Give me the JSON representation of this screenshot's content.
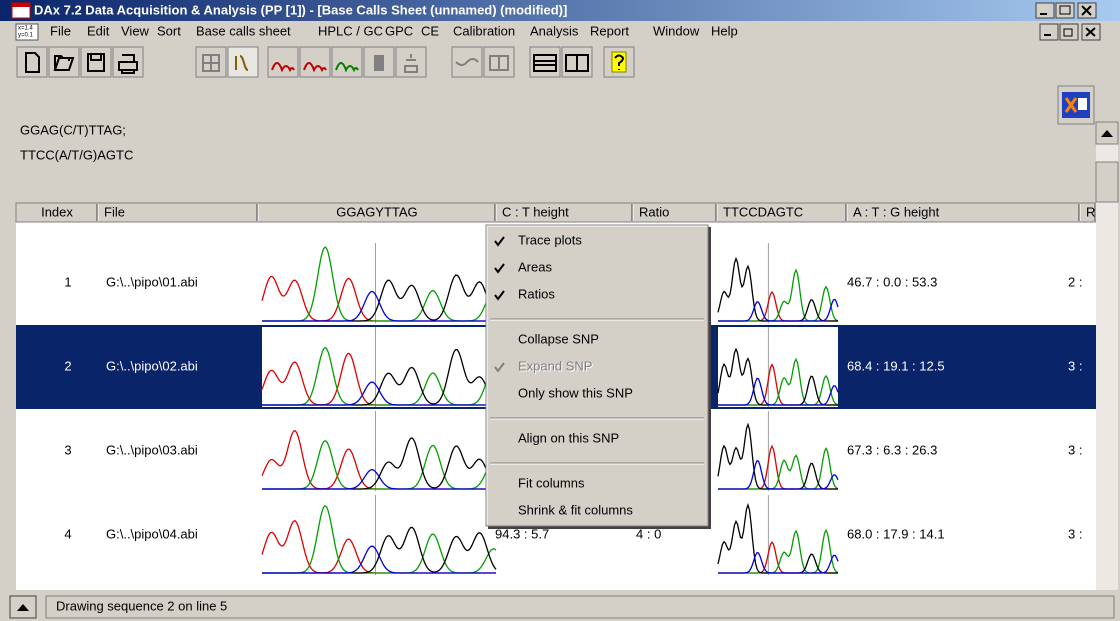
{
  "window": {
    "title": "DAx 7.2 Data Acquisition & Analysis (PP [1]) - [Base Calls Sheet (unnamed) (modified)]"
  },
  "menu": [
    "File",
    "Edit",
    "View",
    "Sort",
    "Base calls sheet",
    "HPLC / GC",
    "GPC",
    "CE",
    "Calibration",
    "Analysis",
    "Report",
    "Window",
    "Help"
  ],
  "sequences": [
    "GGAG(C/T)TTAG;",
    "TTCC(A/T/G)AGTC"
  ],
  "table": {
    "columns": [
      "Index",
      "File",
      "GGAGYTTAG",
      "C : T height",
      "Ratio",
      "TTCCDAGTC",
      "A : T : G height",
      "R"
    ],
    "rows": [
      {
        "index": 1,
        "file": "G:\\..\\pipo\\01.abi",
        "atg_height": "46.7 : 0.0 : 53.3",
        "r": "2 :"
      },
      {
        "index": 2,
        "file": "G:\\..\\pipo\\02.abi",
        "atg_height": "68.4 : 19.1 : 12.5",
        "r": "3 :",
        "selected": true
      },
      {
        "index": 3,
        "file": "G:\\..\\pipo\\03.abi",
        "atg_height": "67.3 : 6.3 : 26.3",
        "r": "3 :"
      },
      {
        "index": 4,
        "file": "G:\\..\\pipo\\04.abi",
        "ct_height": "94.3 : 5.7",
        "ratio": "4 : 0",
        "atg_height": "68.0 : 17.9 : 14.1",
        "r": "3 :"
      }
    ]
  },
  "context_menu": [
    [
      {
        "label": "Trace plots",
        "checked": true
      },
      {
        "label": "Areas",
        "checked": true
      },
      {
        "label": "Ratios",
        "checked": true
      }
    ],
    [
      {
        "label": "Collapse SNP"
      },
      {
        "label": "Expand SNP",
        "checked": true,
        "disabled": true
      },
      {
        "label": "Only show this SNP"
      }
    ],
    [
      {
        "label": "Align on this SNP"
      }
    ],
    [
      {
        "label": "Fit columns"
      },
      {
        "label": "Shrink & fit columns"
      }
    ]
  ],
  "status": "Drawing sequence 2 on line 5"
}
